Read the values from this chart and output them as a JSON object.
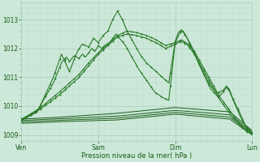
{
  "background_color": "#cce8d8",
  "plot_bg_color": "#cce8d8",
  "grid_color_major": "#aacfbe",
  "grid_color_minor": "#bddacb",
  "line_color_dark": "#1a5c1a",
  "line_color_medium": "#2a7a2a",
  "xlabel": "Pression niveau de la mer( hPa )",
  "xtick_labels": [
    "Ven",
    "Sam",
    "Dim",
    "Lun"
  ],
  "xtick_positions": [
    0,
    48,
    96,
    144
  ],
  "ylim": [
    1008.8,
    1013.6
  ],
  "ytick_positions": [
    1009,
    1010,
    1011,
    1012,
    1013
  ],
  "total_points": 145
}
